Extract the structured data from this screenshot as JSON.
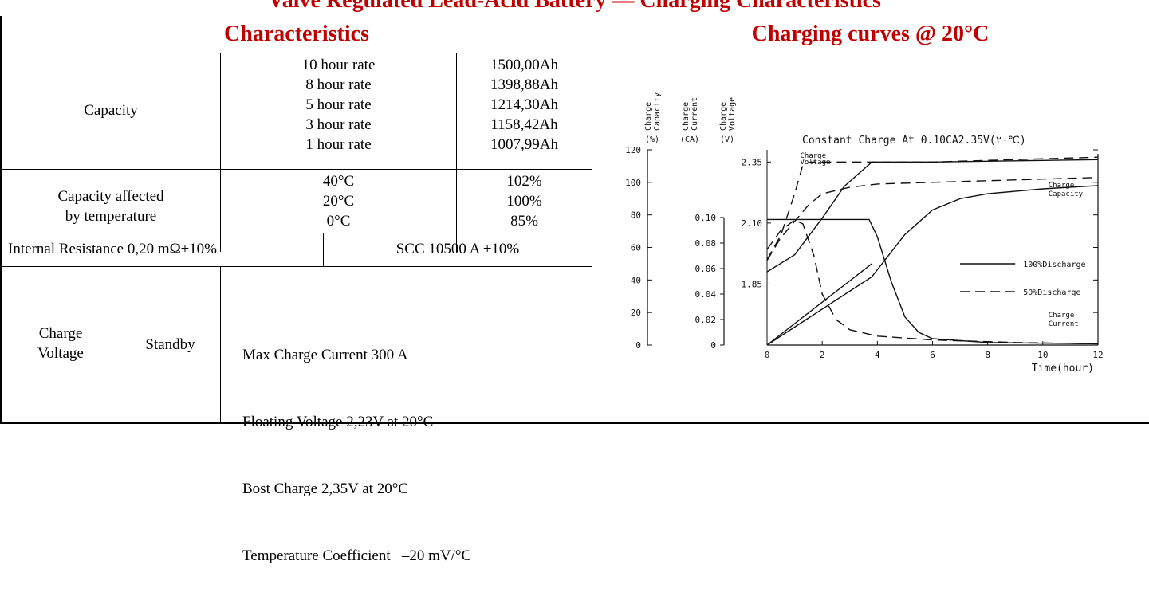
{
  "clipped_title": "Valve Regulated Lead-Acid Battery — Charging Characteristics",
  "headers": {
    "characteristics": "Characteristics",
    "charging_curves": "Charging curves @ 20°C"
  },
  "capacity": {
    "label": "Capacity",
    "rates": [
      "10 hour rate",
      "8 hour rate",
      "5 hour rate",
      "3 hour rate",
      "1 hour rate"
    ],
    "values": [
      "1500,00Ah",
      "1398,88Ah",
      "1214,30Ah",
      "1158,42Ah",
      "1007,99Ah"
    ]
  },
  "temperature": {
    "label_line1": "Capacity affected",
    "label_line2": "by temperature",
    "temps": [
      "40°C",
      "20°C",
      "0°C"
    ],
    "values": [
      "102%",
      "100%",
      "85%"
    ]
  },
  "resistance": {
    "internal": "Internal Resistance 0,20 mΩ±10%",
    "scc": "SCC 10500 A ±10%"
  },
  "charge_voltage": {
    "label_line1": "Charge",
    "label_line2": "Voltage",
    "mode": "Standby",
    "lines": [
      "Max Charge Current 300 A",
      "Floating Voltage 2,23V at 20°C",
      "Bost Charge 2,35V at 20°C",
      "Temperature Coefficient   –20 mV/°C"
    ]
  },
  "chart_data": {
    "type": "line",
    "title": "Constant Charge At 0.10CA2.35V(۲۰℃)",
    "xlabel": "Time(hour)",
    "x_ticks": [
      "0",
      "2",
      "4",
      "6",
      "8",
      "10",
      "12"
    ],
    "xlim": [
      0,
      12
    ],
    "axes": [
      {
        "label": "Charge Capacity (%)",
        "ticks": [
          "0",
          "20",
          "40",
          "60",
          "80",
          "100",
          "120"
        ],
        "lim": [
          0,
          120
        ]
      },
      {
        "label": "Charge Current (CA)",
        "ticks": [
          "0",
          "0.02",
          "0.04",
          "0.06",
          "0.08",
          "0.10"
        ],
        "lim": [
          0,
          0.1
        ]
      },
      {
        "label": "Charge Voltage (V)",
        "ticks": [
          "1.85",
          "2.10",
          "2.35"
        ],
        "lim": [
          1.6,
          2.4
        ]
      }
    ],
    "axis_header_words": [
      [
        "Charge",
        "Capacity"
      ],
      [
        "Charge",
        "Current"
      ],
      [
        "Charge",
        "Voltage"
      ]
    ],
    "axis_header_units": [
      "(%)",
      "(CA)",
      "(V)"
    ],
    "annotations": [
      "Charge Voltage",
      "Charge Capacity",
      "Charge Current"
    ],
    "legend": [
      {
        "label": "100%Discharge",
        "dash": "solid"
      },
      {
        "label": "50%Discharge",
        "dash": "dashed"
      }
    ],
    "series": [
      {
        "name": "Charge Voltage",
        "discharge": "100%",
        "axis": "voltage",
        "points": [
          [
            0,
            1.9
          ],
          [
            1,
            1.97
          ],
          [
            2,
            2.12
          ],
          [
            2.8,
            2.25
          ],
          [
            3.8,
            2.35
          ],
          [
            6,
            2.35
          ],
          [
            9,
            2.355
          ],
          [
            12,
            2.36
          ]
        ]
      },
      {
        "name": "Charge Voltage",
        "discharge": "50%",
        "axis": "voltage",
        "points": [
          [
            0,
            1.95
          ],
          [
            0.5,
            2.05
          ],
          [
            1,
            2.22
          ],
          [
            1.3,
            2.34
          ],
          [
            1.6,
            2.35
          ],
          [
            6,
            2.35
          ],
          [
            12,
            2.37
          ]
        ]
      },
      {
        "name": "Charge Capacity",
        "discharge": "100%",
        "axis": "capacity",
        "points": [
          [
            0,
            0
          ],
          [
            3.8,
            42
          ],
          [
            5,
            68
          ],
          [
            6,
            83
          ],
          [
            7,
            90
          ],
          [
            8,
            93
          ],
          [
            10,
            96
          ],
          [
            12,
            98
          ]
        ]
      },
      {
        "name": "Charge Capacity",
        "discharge": "50%",
        "axis": "capacity",
        "points": [
          [
            0,
            52
          ],
          [
            0.5,
            66
          ],
          [
            1,
            76
          ],
          [
            1.5,
            86
          ],
          [
            2,
            93
          ],
          [
            3,
            97
          ],
          [
            4,
            99
          ],
          [
            6,
            100
          ],
          [
            12,
            103
          ]
        ]
      },
      {
        "name": "Charge Current",
        "discharge": "100%",
        "axis": "current",
        "points": [
          [
            0,
            0.0985
          ],
          [
            3.7,
            0.0985
          ],
          [
            4,
            0.085
          ],
          [
            4.5,
            0.05
          ],
          [
            5,
            0.022
          ],
          [
            5.5,
            0.01
          ],
          [
            6,
            0.005
          ],
          [
            8,
            0.002
          ],
          [
            12,
            0.001
          ]
        ]
      },
      {
        "name": "Charge Current",
        "discharge": "50%",
        "axis": "current",
        "points": [
          [
            0,
            0.075
          ],
          [
            0.5,
            0.09
          ],
          [
            1,
            0.098
          ],
          [
            1.3,
            0.095
          ],
          [
            1.7,
            0.07
          ],
          [
            2,
            0.04
          ],
          [
            2.5,
            0.02
          ],
          [
            3,
            0.012
          ],
          [
            4,
            0.007
          ],
          [
            6,
            0.004
          ],
          [
            9,
            0.002
          ],
          [
            12,
            0.001
          ]
        ]
      },
      {
        "name": "Charge Current ramp",
        "discharge": "100%",
        "axis": "capacity",
        "points": [
          [
            0,
            0
          ],
          [
            3.8,
            50
          ]
        ]
      }
    ]
  }
}
